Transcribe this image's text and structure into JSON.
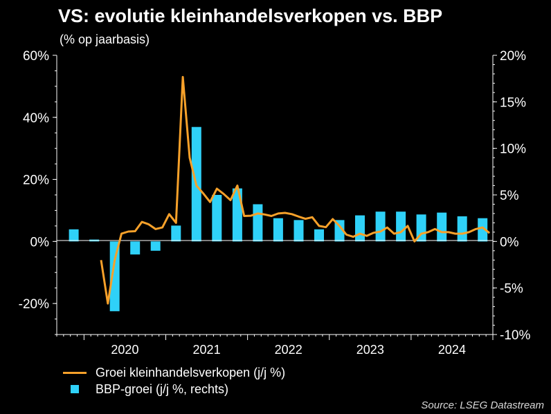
{
  "chart_data": {
    "type": "bar",
    "title": "VS: evolutie kleinhandelsverkopen vs. BBP",
    "subtitle": "(% op jaarbasis)",
    "source": "Source: LSEG Datastream",
    "x_tick_labels": [
      "2020",
      "2021",
      "2022",
      "2023",
      "2024"
    ],
    "xlim": [
      "2019-09",
      "2024-12"
    ],
    "y_left": {
      "ylim": [
        -30,
        60
      ],
      "ticks": [
        -20,
        0,
        20,
        40,
        60
      ],
      "tick_labels": [
        "-20%",
        "0%",
        "20%",
        "40%",
        "60%"
      ]
    },
    "y_right": {
      "ylim": [
        -10,
        20
      ],
      "ticks": [
        -10,
        -5,
        0,
        5,
        10,
        15,
        20
      ],
      "tick_labels": [
        "-10%",
        "-5%",
        "0%",
        "5%",
        "10%",
        "15%",
        "20%"
      ]
    },
    "legend_position": "bottom-left",
    "series": [
      {
        "name": "Groei kleinhandelsverkopen (j/j %)",
        "type": "line",
        "axis": "left",
        "color": "#f7a12a",
        "x": [
          "2020-03",
          "2020-04",
          "2020-05",
          "2020-06",
          "2020-07",
          "2020-08",
          "2020-09",
          "2020-10",
          "2020-11",
          "2020-12",
          "2021-01",
          "2021-02",
          "2021-03",
          "2021-04",
          "2021-05",
          "2021-06",
          "2021-07",
          "2021-08",
          "2021-09",
          "2021-10",
          "2021-11",
          "2021-12",
          "2022-01",
          "2022-02",
          "2022-03",
          "2022-04",
          "2022-05",
          "2022-06",
          "2022-07",
          "2022-08",
          "2022-09",
          "2022-10",
          "2022-11",
          "2022-12",
          "2023-01",
          "2023-02",
          "2023-03",
          "2023-04",
          "2023-05",
          "2023-06",
          "2023-07",
          "2023-08",
          "2023-09",
          "2023-10",
          "2023-11",
          "2023-12",
          "2024-01",
          "2024-02",
          "2024-03",
          "2024-04",
          "2024-05",
          "2024-06",
          "2024-07",
          "2024-08",
          "2024-09",
          "2024-10",
          "2024-11",
          "2024-12"
        ],
        "values": [
          -6,
          -20,
          -6,
          2.5,
          3.2,
          3.3,
          6.3,
          5.5,
          4,
          4.5,
          8.8,
          6,
          53,
          27,
          18,
          15.5,
          12.7,
          17,
          15.3,
          13.3,
          18,
          8.2,
          8.3,
          9,
          8.7,
          8.2,
          9,
          9.2,
          8.8,
          8,
          7.3,
          7.8,
          5,
          4.6,
          7.2,
          5,
          2.2,
          1.5,
          2.5,
          1.8,
          2.8,
          3.2,
          4.5,
          2.5,
          3,
          5,
          0,
          2.5,
          3,
          4,
          3,
          3,
          2.5,
          2.5,
          3,
          4,
          4.5,
          2.7
        ],
        "y_plotted_pct": [
          -6,
          -20,
          -6,
          2.5,
          3.2,
          3.3,
          6.3,
          5.5,
          4,
          4.5,
          8.8,
          6,
          53,
          27,
          18,
          15.5,
          12.7,
          17,
          15.3,
          13.3,
          18,
          8.2,
          8.3,
          9,
          8.7,
          8.2,
          9,
          9.2,
          8.8,
          8,
          7.3,
          7.8,
          5,
          4.6,
          7.2,
          5,
          2.2,
          1.5,
          2.5,
          1.8,
          2.8,
          3.2,
          4.5,
          2.5,
          3,
          5,
          0,
          2.5,
          3,
          4,
          3,
          3,
          2.5,
          2.5,
          3,
          4,
          4.5,
          2.7
        ]
      },
      {
        "name": "BBP-groei (j/j %, rechts)",
        "type": "bar",
        "axis": "right",
        "color": "#2fd1f8",
        "x": [
          "2019-Q4",
          "2020-Q1",
          "2020-Q2",
          "2020-Q3",
          "2020-Q4",
          "2021-Q1",
          "2021-Q2",
          "2021-Q3",
          "2021-Q4",
          "2022-Q1",
          "2022-Q2",
          "2022-Q3",
          "2022-Q4",
          "2023-Q1",
          "2023-Q2",
          "2023-Q3",
          "2023-Q4",
          "2024-Q1",
          "2024-Q2",
          "2024-Q3",
          "2024-Q4"
        ],
        "values": [
          1.3,
          0.2,
          -7.5,
          -1.4,
          -1,
          1.7,
          12.3,
          5,
          5.7,
          4,
          2.5,
          2.3,
          1.3,
          2.3,
          2.8,
          3.2,
          3.2,
          2.9,
          3.1,
          2.7,
          2.5
        ]
      }
    ]
  }
}
